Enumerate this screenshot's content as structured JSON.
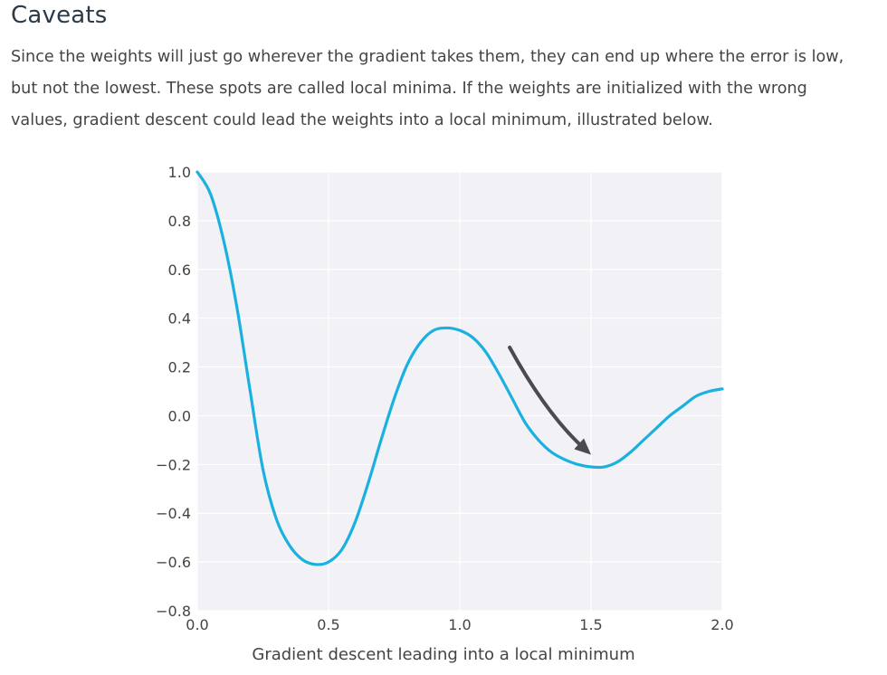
{
  "section": {
    "title": "Caveats",
    "paragraph_lines": [
      "Since the weights will just go wherever the gradient takes them, they can end up where the error is low,",
      "but not the lowest. These spots are called local minima. If the weights are initialized with the wrong",
      "values, gradient descent could lead the weights into a local minimum, illustrated below."
    ]
  },
  "caption": "Gradient descent leading into a local minimum",
  "colors": {
    "curve": "#1ab1e0",
    "arrow": "#4a4a4f",
    "plot_background": "#f1f1f6",
    "grid": "#ffffff"
  },
  "chart_data": {
    "type": "line",
    "title": "",
    "xlabel": "",
    "ylabel": "",
    "xlim": [
      0.0,
      2.0
    ],
    "ylim": [
      -0.8,
      1.0
    ],
    "grid": true,
    "x_ticks": [
      "0.0",
      "0.5",
      "1.0",
      "1.5",
      "2.0"
    ],
    "y_ticks": [
      "1.0",
      "0.8",
      "0.6",
      "0.4",
      "0.2",
      "0.0",
      "−0.2",
      "−0.4",
      "−0.6",
      "−0.8"
    ],
    "series": [
      {
        "x": [
          0.0,
          0.05,
          0.1,
          0.15,
          0.2,
          0.25,
          0.3,
          0.35,
          0.4,
          0.45,
          0.5,
          0.55,
          0.6,
          0.65,
          0.7,
          0.75,
          0.8,
          0.85,
          0.9,
          0.95,
          1.0,
          1.05,
          1.1,
          1.15,
          1.2,
          1.25,
          1.3,
          1.35,
          1.4,
          1.45,
          1.5,
          1.55,
          1.6,
          1.65,
          1.7,
          1.75,
          1.8,
          1.85,
          1.9,
          1.95,
          2.0
        ],
        "y": [
          1.0,
          0.91,
          0.72,
          0.45,
          0.11,
          -0.22,
          -0.42,
          -0.53,
          -0.59,
          -0.61,
          -0.6,
          -0.55,
          -0.44,
          -0.28,
          -0.1,
          0.07,
          0.21,
          0.3,
          0.35,
          0.36,
          0.35,
          0.32,
          0.26,
          0.17,
          0.07,
          -0.03,
          -0.1,
          -0.15,
          -0.18,
          -0.2,
          -0.21,
          -0.21,
          -0.19,
          -0.15,
          -0.1,
          -0.05,
          0.0,
          0.04,
          0.08,
          0.1,
          0.11
        ]
      }
    ],
    "annotations": [
      {
        "type": "arrow",
        "from": [
          1.19,
          0.28
        ],
        "to": [
          1.5,
          -0.16
        ]
      }
    ]
  }
}
